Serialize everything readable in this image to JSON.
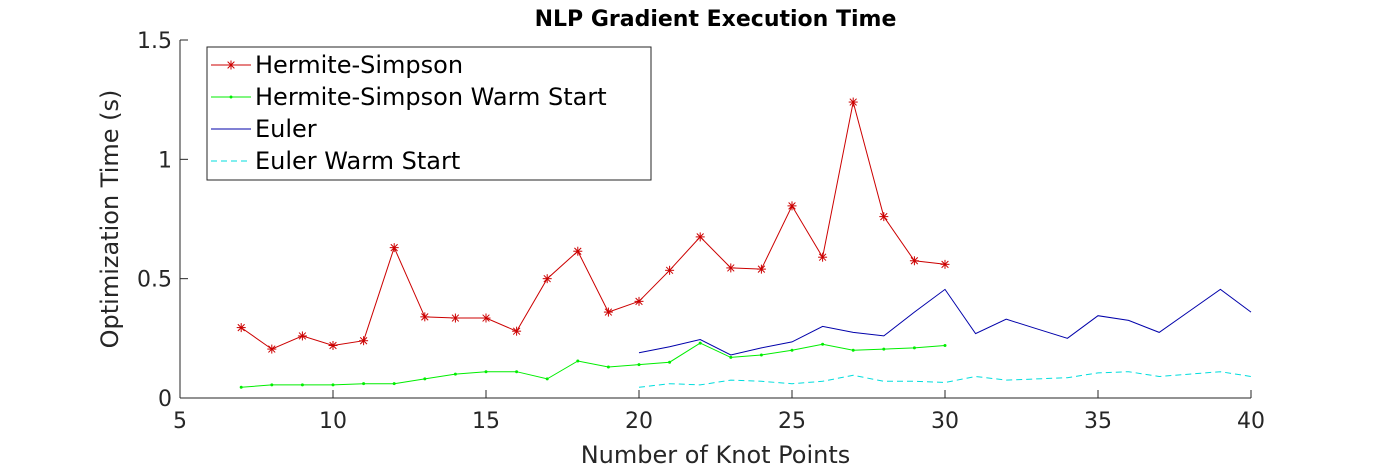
{
  "chart_data": {
    "type": "line",
    "title": "NLP Gradient Execution Time",
    "xlabel": "Number of Knot Points",
    "ylabel": "Optimization Time (s)",
    "xlim": [
      5,
      40
    ],
    "ylim": [
      0,
      1.5
    ],
    "xticks": [
      5,
      10,
      15,
      20,
      25,
      30,
      35,
      40
    ],
    "yticks": [
      0,
      0.5,
      1,
      1.5
    ],
    "xtick_labels": [
      "5",
      "10",
      "15",
      "20",
      "25",
      "30",
      "35",
      "40"
    ],
    "ytick_labels": [
      "0",
      "0.5",
      "1",
      "1.5"
    ],
    "grid": false,
    "legend_position": "top-left",
    "series": [
      {
        "name": "Hermite-Simpson",
        "color": "#cc0000",
        "style": "solid-asterisk",
        "x": [
          7,
          8,
          9,
          10,
          11,
          12,
          13,
          14,
          15,
          16,
          17,
          18,
          19,
          20,
          21,
          22,
          23,
          24,
          25,
          26,
          27,
          28,
          29,
          30
        ],
        "y": [
          0.295,
          0.205,
          0.26,
          0.22,
          0.24,
          0.63,
          0.34,
          0.335,
          0.335,
          0.28,
          0.5,
          0.615,
          0.36,
          0.405,
          0.535,
          0.675,
          0.545,
          0.54,
          0.805,
          0.59,
          1.24,
          0.76,
          0.575,
          0.56
        ]
      },
      {
        "name": "Hermite-Simpson Warm Start",
        "color": "#00ee00",
        "style": "solid-point",
        "x": [
          7,
          8,
          9,
          10,
          11,
          12,
          13,
          14,
          15,
          16,
          17,
          18,
          19,
          20,
          21,
          22,
          23,
          24,
          25,
          26,
          27,
          28,
          29,
          30
        ],
        "y": [
          0.045,
          0.055,
          0.055,
          0.055,
          0.06,
          0.06,
          0.08,
          0.1,
          0.11,
          0.11,
          0.08,
          0.155,
          0.13,
          0.14,
          0.15,
          0.23,
          0.17,
          0.18,
          0.2,
          0.225,
          0.2,
          0.205,
          0.21,
          0.22
        ]
      },
      {
        "name": "Euler",
        "color": "#0000aa",
        "style": "solid",
        "x": [
          20,
          21,
          22,
          23,
          24,
          25,
          26,
          27,
          28,
          29,
          30,
          31,
          32,
          33,
          34,
          35,
          36,
          37,
          38,
          39,
          40
        ],
        "y": [
          0.19,
          0.215,
          0.245,
          0.18,
          0.21,
          0.235,
          0.3,
          0.275,
          0.26,
          0.36,
          0.455,
          0.27,
          0.33,
          0.29,
          0.25,
          0.345,
          0.325,
          0.275,
          0.365,
          0.455,
          0.36
        ]
      },
      {
        "name": "Euler Warm Start",
        "color": "#00dddd",
        "style": "dashed",
        "x": [
          20,
          21,
          22,
          23,
          24,
          25,
          26,
          27,
          28,
          29,
          30,
          31,
          32,
          33,
          34,
          35,
          36,
          37,
          38,
          39,
          40
        ],
        "y": [
          0.045,
          0.06,
          0.055,
          0.075,
          0.07,
          0.06,
          0.07,
          0.095,
          0.07,
          0.07,
          0.065,
          0.09,
          0.075,
          0.08,
          0.085,
          0.105,
          0.11,
          0.09,
          0.1,
          0.11,
          0.09
        ]
      }
    ]
  }
}
